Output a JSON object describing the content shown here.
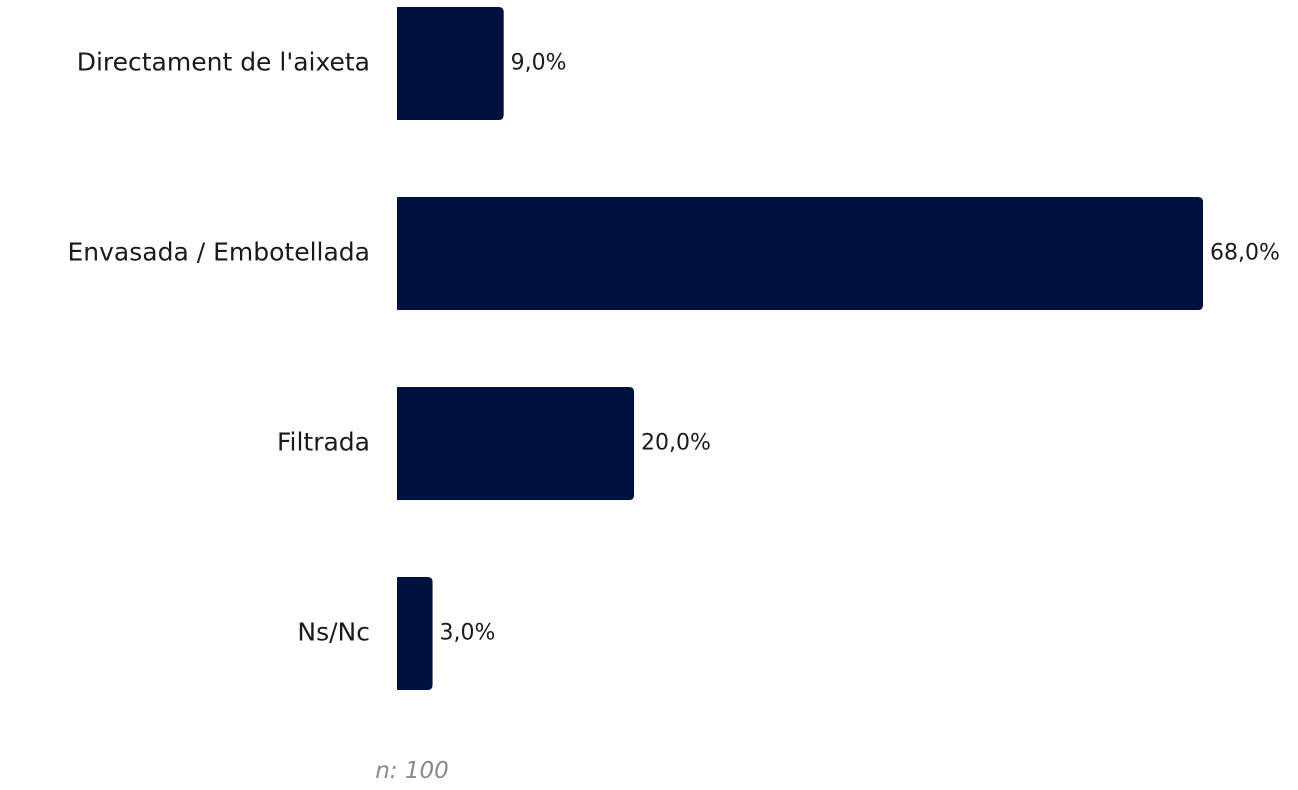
{
  "chart_data": {
    "type": "bar",
    "orientation": "horizontal",
    "categories": [
      "Directament de l'aixeta",
      "Envasada / Embotellada",
      "Filtrada",
      "Ns/Nc"
    ],
    "values": [
      9.0,
      68.0,
      20.0,
      3.0
    ],
    "value_labels": [
      "9,0%",
      "68,0%",
      "20,0%",
      "3,0%"
    ],
    "unit": "%",
    "xlim": [
      0,
      68
    ],
    "grid": false,
    "legend": "none",
    "bar_color": "#00103f",
    "note": "n: 100"
  }
}
